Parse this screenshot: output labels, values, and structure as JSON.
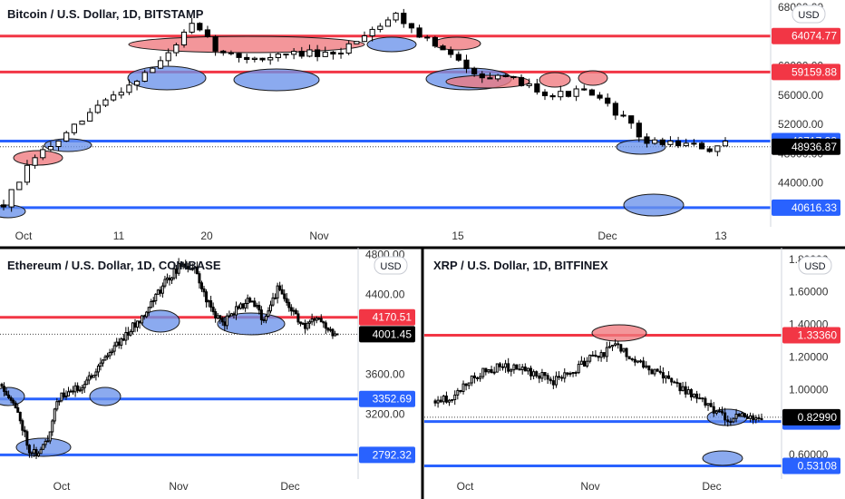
{
  "colors": {
    "up": "#ffffff",
    "down": "#000000",
    "resistance": "#f23645",
    "support": "#2962ff",
    "resistance_fill": "#f0797d",
    "support_fill": "#6a92ea",
    "current_price_bg": "#000000",
    "axis_text": "#333333",
    "grid_divider": "#000000"
  },
  "chart_data": [
    {
      "type": "candlestick",
      "title": "Bitcoin / U.S. Dollar, 1D, BITSTAMP",
      "currency_button": "USD",
      "ylim": [
        38000,
        69000
      ],
      "y_ticks": [
        "44000.00",
        "48000.00",
        "52000.00",
        "56000.00",
        "60000.00",
        "64000.00",
        "68000.00"
      ],
      "x_ticks": [
        "Oct",
        "11",
        "20",
        "Nov",
        "15",
        "Dec",
        "13"
      ],
      "levels": [
        {
          "kind": "resistance",
          "value": 64074.77,
          "label": "64074.77"
        },
        {
          "kind": "resistance",
          "value": 59159.88,
          "label": "59159.88"
        },
        {
          "kind": "support",
          "value": 49717.38,
          "label": "49717.38"
        },
        {
          "kind": "support",
          "value": 40616.33,
          "label": "40616.33"
        }
      ],
      "current_price": {
        "value": 48936.87,
        "label": "48936.87"
      },
      "seed": 7,
      "candles": 80,
      "path": [
        [
          0,
          41000
        ],
        [
          4,
          47500
        ],
        [
          8,
          50500
        ],
        [
          12,
          54500
        ],
        [
          16,
          57500
        ],
        [
          20,
          60500
        ],
        [
          24,
          65500
        ],
        [
          28,
          61500
        ],
        [
          33,
          61000
        ],
        [
          38,
          61800
        ],
        [
          42,
          61200
        ],
        [
          46,
          64500
        ],
        [
          50,
          67000
        ],
        [
          54,
          63500
        ],
        [
          58,
          60500
        ],
        [
          62,
          58300
        ],
        [
          66,
          57800
        ],
        [
          70,
          56000
        ],
        [
          74,
          56500
        ],
        [
          78,
          53800
        ],
        [
          82,
          49500
        ],
        [
          86,
          49500
        ],
        [
          90,
          48500
        ],
        [
          92,
          49200
        ]
      ]
    },
    {
      "type": "candlestick",
      "title": "Ethereum / U.S. Dollar, 1D, COINBASE",
      "currency_button": "USD",
      "ylim": [
        2550,
        4850
      ],
      "y_ticks": [
        "3200.00",
        "3600.00",
        "4000.00",
        "4400.00",
        "4800.00"
      ],
      "x_ticks": [
        "Oct",
        "Nov",
        "Dec"
      ],
      "levels": [
        {
          "kind": "resistance",
          "value": 4170.51,
          "label": "4170.51"
        },
        {
          "kind": "support",
          "value": 3352.69,
          "label": "3352.69"
        },
        {
          "kind": "support",
          "value": 2792.32,
          "label": "2792.32"
        }
      ],
      "current_price": {
        "value": 4001.45,
        "label": "4001.45"
      },
      "seed": 11,
      "path": [
        [
          0,
          3500
        ],
        [
          4,
          3350
        ],
        [
          8,
          3150
        ],
        [
          12,
          2850
        ],
        [
          16,
          2800
        ],
        [
          20,
          2950
        ],
        [
          24,
          3350
        ],
        [
          30,
          3420
        ],
        [
          36,
          3500
        ],
        [
          44,
          3750
        ],
        [
          52,
          3950
        ],
        [
          60,
          4150
        ],
        [
          66,
          4350
        ],
        [
          72,
          4550
        ],
        [
          78,
          4700
        ],
        [
          84,
          4650
        ],
        [
          90,
          4300
        ],
        [
          96,
          4100
        ],
        [
          102,
          4250
        ],
        [
          108,
          4350
        ],
        [
          114,
          4150
        ],
        [
          120,
          4450
        ],
        [
          126,
          4250
        ],
        [
          132,
          4050
        ],
        [
          138,
          4200
        ],
        [
          142,
          4050
        ],
        [
          146,
          4001
        ]
      ]
    },
    {
      "type": "candlestick",
      "title": "XRP / U.S. Dollar, 1D, BITFINEX",
      "currency_button": "USD",
      "ylim": [
        0.45,
        1.86
      ],
      "y_ticks": [
        "0.60000",
        "0.80000",
        "1.00000",
        "1.20000",
        "1.40000",
        "1.60000",
        "1.80000"
      ],
      "x_ticks": [
        "Oct",
        "Nov",
        "Dec"
      ],
      "levels": [
        {
          "kind": "resistance",
          "value": 1.3336,
          "label": "1.33360"
        },
        {
          "kind": "support",
          "value": 0.8033,
          "label": "0.80330"
        },
        {
          "kind": "support",
          "value": 0.53108,
          "label": "0.53108"
        }
      ],
      "current_price": {
        "value": 0.8299,
        "label": "0.82990"
      },
      "seed": 23,
      "path": [
        [
          0,
          0.93
        ],
        [
          6,
          0.95
        ],
        [
          12,
          1.05
        ],
        [
          18,
          1.12
        ],
        [
          24,
          1.14
        ],
        [
          30,
          1.12
        ],
        [
          36,
          1.1
        ],
        [
          42,
          1.05
        ],
        [
          48,
          1.1
        ],
        [
          54,
          1.18
        ],
        [
          60,
          1.22
        ],
        [
          64,
          1.28
        ],
        [
          68,
          1.22
        ],
        [
          72,
          1.18
        ],
        [
          78,
          1.1
        ],
        [
          84,
          1.05
        ],
        [
          90,
          0.98
        ],
        [
          96,
          0.92
        ],
        [
          100,
          0.86
        ],
        [
          104,
          0.82
        ],
        [
          108,
          0.83
        ],
        [
          112,
          0.84
        ],
        [
          116,
          0.83
        ]
      ]
    }
  ]
}
